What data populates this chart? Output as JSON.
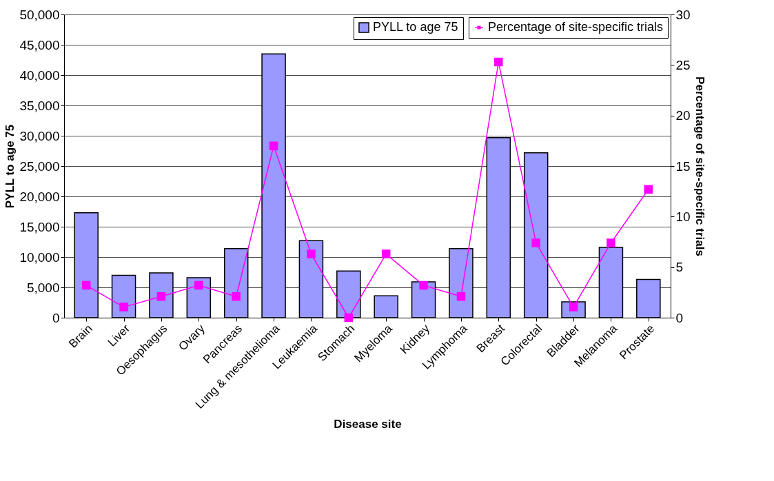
{
  "chart_data": {
    "type": "bar",
    "categories": [
      "Brain",
      "Liver",
      "Oesophagus",
      "Ovary",
      "Pancreas",
      "Lung & mesothelioma",
      "Leukaemia",
      "Stomach",
      "Myeloma",
      "Kidney",
      "Lymphoma",
      "Breast",
      "Colorectal",
      "Bladder",
      "Melanoma",
      "Prostate"
    ],
    "series": [
      {
        "name": "PYLL to age 75",
        "color": "#9999ff",
        "values": [
          17300,
          7000,
          7400,
          6600,
          11400,
          43500,
          12700,
          7700,
          3600,
          5900,
          11400,
          29700,
          27200,
          2600,
          11600,
          6300
        ]
      },
      {
        "name": "Percentage of site-specific trials",
        "type": "line",
        "axis": "y2",
        "color": "#ff00ff",
        "marker": "square",
        "values": [
          3.2,
          1.05,
          2.1,
          3.2,
          2.1,
          17.0,
          6.3,
          0,
          6.3,
          3.2,
          2.1,
          25.3,
          7.4,
          1.05,
          7.4,
          12.7
        ]
      }
    ],
    "xlabel": "Disease site",
    "ylabel": "PYLL to age 75",
    "y2label": "Percentage of site-specific trials",
    "ylim": [
      0,
      50000
    ],
    "yticks": [
      0,
      {
        "value": 5000,
        "label": "5,000"
      },
      {
        "value": 10000,
        "label": "10,000"
      },
      {
        "value": 15000,
        "label": "15,000"
      },
      {
        "value": 20000,
        "label": "20,000"
      },
      {
        "value": 25000,
        "label": "25,000"
      },
      {
        "value": 30000,
        "label": "30,000"
      },
      {
        "value": 35000,
        "label": "35,000"
      },
      {
        "value": 40000,
        "label": "40,000"
      },
      {
        "value": 45000,
        "label": "45,000"
      },
      {
        "value": 50000,
        "label": "50,000"
      }
    ],
    "y2lim": [
      0,
      30
    ],
    "y2ticks": [
      0,
      5,
      10,
      15,
      20,
      25,
      30
    ],
    "grid": "y",
    "legend": "top right"
  }
}
